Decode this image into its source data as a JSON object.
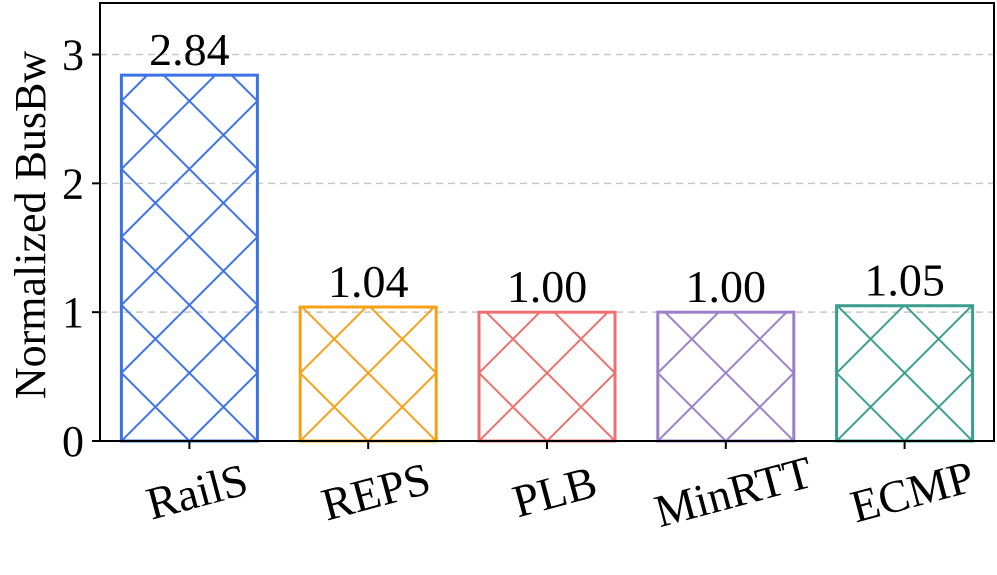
{
  "chart_data": {
    "type": "bar",
    "categories": [
      "RailS",
      "REPS",
      "PLB",
      "MinRTT",
      "ECMP"
    ],
    "values": [
      2.84,
      1.04,
      1.0,
      1.0,
      1.05
    ],
    "data_labels": [
      "2.84",
      "1.04",
      "1.00",
      "1.00",
      "1.05"
    ],
    "colors": [
      "#3b73e6",
      "#f5a017",
      "#f07070",
      "#9b7fc8",
      "#3a9e8e"
    ],
    "hatch": "crosshatch",
    "title": "",
    "xlabel": "",
    "ylabel": "Normalized BusBw",
    "ylim": [
      0,
      3.4
    ],
    "yticks": [
      0,
      1,
      2,
      3
    ],
    "ytick_labels": [
      "0",
      "1",
      "2",
      "3"
    ],
    "grid": "horizontal-dashed",
    "xtick_rotation": -15
  }
}
